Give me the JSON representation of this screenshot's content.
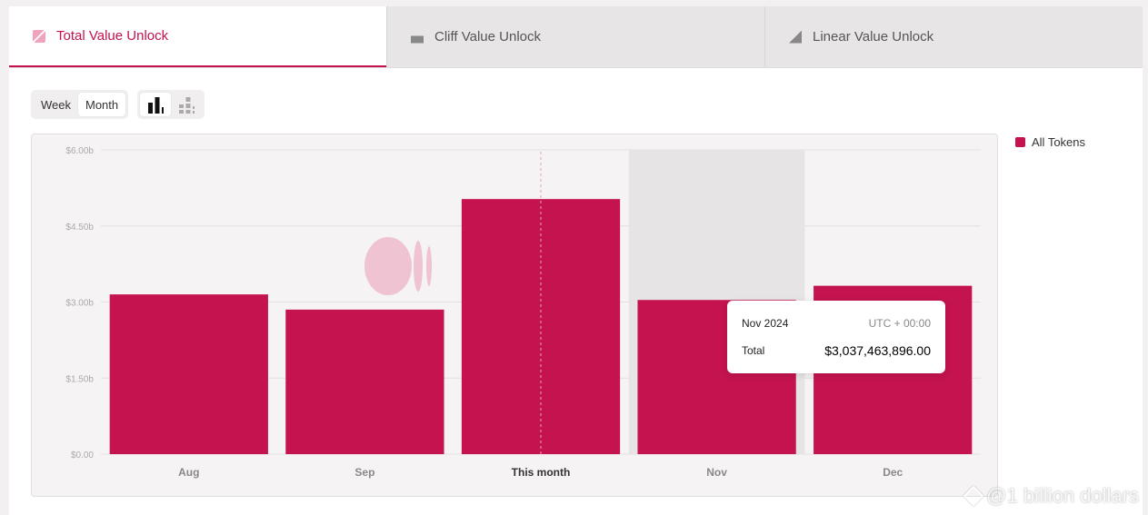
{
  "tabs": [
    {
      "label": "Total Value Unlock",
      "icon": "stacked-unlock-icon",
      "active": true
    },
    {
      "label": "Cliff Value Unlock",
      "icon": "cliff-unlock-icon",
      "active": false
    },
    {
      "label": "Linear Value Unlock",
      "icon": "linear-unlock-icon",
      "active": false
    }
  ],
  "period_toggle": {
    "options": [
      "Week",
      "Month"
    ],
    "selected": "Month"
  },
  "chart_mode_toggle": {
    "options": [
      "bar-chart-icon",
      "stacked-bar-chart-icon"
    ],
    "selected": "bar-chart-icon"
  },
  "legend": {
    "label": "All Tokens",
    "color": "#c4134f"
  },
  "tooltip": {
    "period": "Nov 2024",
    "timezone": "UTC + 00:00",
    "label": "Total",
    "value": "$3,037,463,896.00"
  },
  "watermark": "@1 billion dollars",
  "chart_data": {
    "type": "bar",
    "categories": [
      "Aug",
      "Sep",
      "This month",
      "Nov",
      "Dec"
    ],
    "series": [
      {
        "name": "All Tokens",
        "values": [
          3.15,
          2.85,
          5.03,
          3.04,
          3.32
        ],
        "color": "#c4134f"
      }
    ],
    "ylim": [
      0,
      6
    ],
    "yticks": [
      0,
      1.5,
      3,
      4.5,
      6
    ],
    "ytick_labels": [
      "$0.00",
      "$1.50b",
      "$3.00b",
      "$4.50b",
      "$6.00b"
    ],
    "highlight_category": "This month",
    "hover_category": "Nov",
    "grid": true
  }
}
